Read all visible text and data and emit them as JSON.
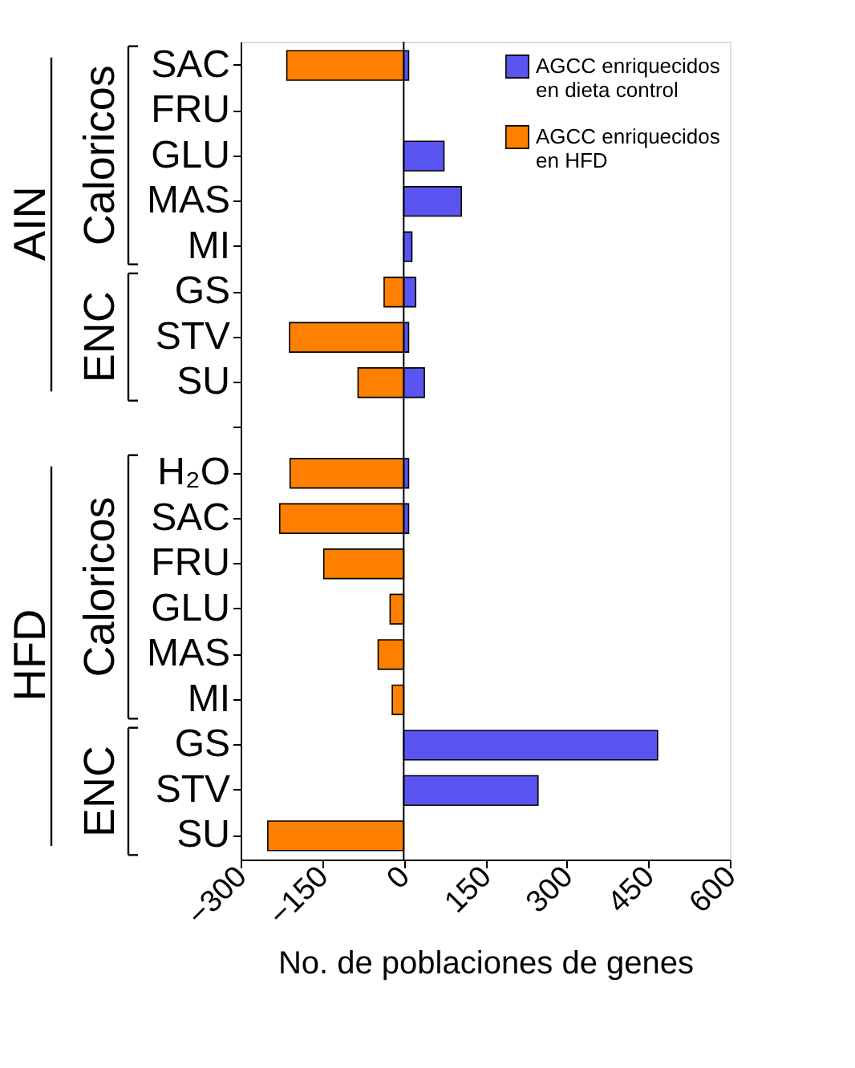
{
  "chart_data": {
    "type": "bar",
    "orientation": "horizontal",
    "xlabel": "No. de poblaciones de genes",
    "categories": [
      "SAC",
      "FRU",
      "GLU",
      "MAS",
      "MI",
      "GS",
      "STV",
      "SU",
      null,
      "H₂O",
      "SAC",
      "FRU",
      "GLU",
      "MAS",
      "MI",
      "GS",
      "STV",
      "SU"
    ],
    "series": [
      {
        "name": "AGCC enriquecidos en dieta control",
        "color": "#5a55f0",
        "values": [
          9,
          null,
          74,
          106,
          15,
          22,
          9,
          38,
          null,
          9,
          9,
          null,
          null,
          null,
          null,
          467,
          247,
          null
        ]
      },
      {
        "name": "AGCC enriquecidos en HFD",
        "color": "#ff7f00",
        "values": [
          -215,
          null,
          null,
          null,
          null,
          -36,
          -210,
          -84,
          null,
          -209,
          -228,
          -147,
          -25,
          -47,
          -21,
          null,
          null,
          -250
        ]
      }
    ],
    "xlim": [
      -300,
      600
    ],
    "xticks": [
      -300,
      -150,
      0,
      150,
      300,
      450,
      600
    ],
    "ref_lines": [
      {
        "axis": "x",
        "value": 0
      }
    ],
    "annotations": [
      "AIN",
      "Caloricos",
      "ENC",
      "HFD",
      "Caloricos",
      "ENC"
    ],
    "legend": "top right",
    "grid": false
  }
}
